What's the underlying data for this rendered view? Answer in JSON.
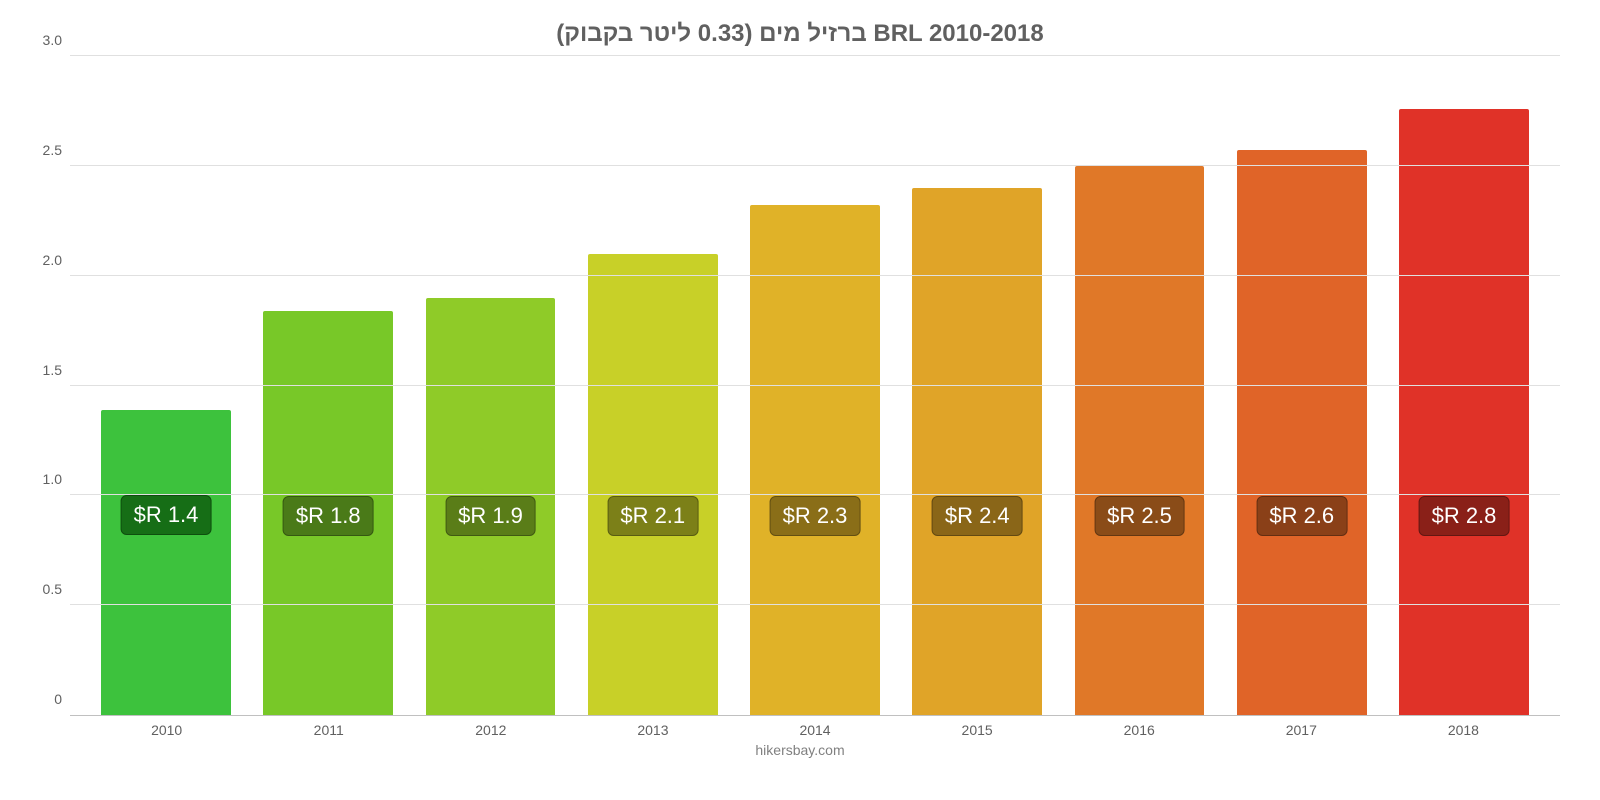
{
  "chart": {
    "type": "bar",
    "title": "ברזיל מים (0.33 ליטר בקבוק) BRL 2010-2018",
    "title_fontsize": 24,
    "title_color": "#606060",
    "attribution": "hikersbay.com",
    "attribution_fontsize": 14,
    "attribution_color": "#808080",
    "background_color": "#ffffff",
    "ylim": [
      0,
      3.0
    ],
    "ytick_step": 0.5,
    "yticks": [
      "0",
      "0.5",
      "1.0",
      "1.5",
      "2.0",
      "2.5",
      "3.0"
    ],
    "ytick_fontsize": 14,
    "ytick_color": "#606060",
    "grid_color": "#e0e0e0",
    "axis_color": "#c0c0c0",
    "bar_width": 0.8,
    "xlabel_fontsize": 14,
    "xlabel_color": "#606060",
    "value_label_fontsize": 22,
    "value_label_color": "#ffffff",
    "categories": [
      "2010",
      "2011",
      "2012",
      "2013",
      "2014",
      "2015",
      "2016",
      "2017",
      "2018"
    ],
    "values": [
      1.39,
      1.84,
      1.9,
      2.1,
      2.32,
      2.4,
      2.5,
      2.57,
      2.76
    ],
    "value_labels": [
      "$R 1.4",
      "$R 1.8",
      "$R 1.9",
      "$R 2.1",
      "$R 2.3",
      "$R 2.4",
      "$R 2.5",
      "$R 2.6",
      "$R 2.8"
    ],
    "bar_colors": [
      "#3dc23d",
      "#78c828",
      "#8fcb28",
      "#c8d028",
      "#e0b228",
      "#e0a428",
      "#e07828",
      "#e06428",
      "#e03228"
    ],
    "badge_colors": [
      "#166e16",
      "#4a7a18",
      "#5a7d18",
      "#7c8018",
      "#8a6e18",
      "#8a6618",
      "#8a4c18",
      "#8a4018",
      "#8a2018"
    ],
    "badge_border_colors": [
      "#0e4e0e",
      "#355812",
      "#405a12",
      "#595c12",
      "#634f12",
      "#634912",
      "#633712",
      "#632e12",
      "#631712"
    ]
  }
}
